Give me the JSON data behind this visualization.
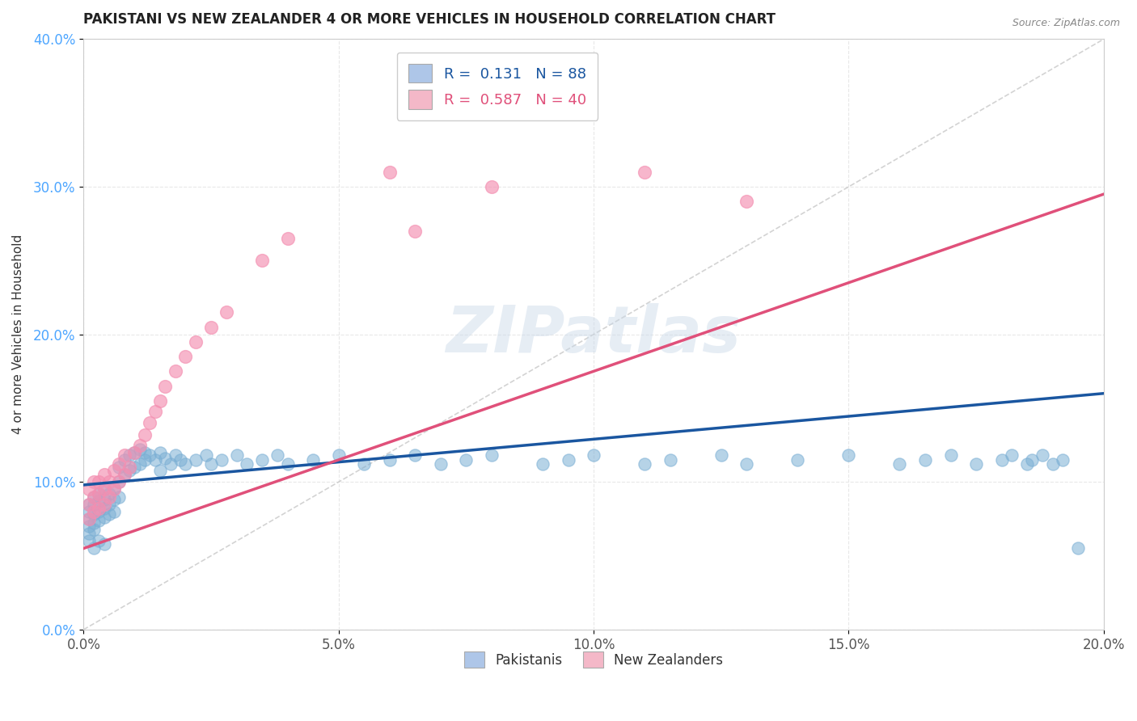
{
  "title": "PAKISTANI VS NEW ZEALANDER 4 OR MORE VEHICLES IN HOUSEHOLD CORRELATION CHART",
  "source": "Source: ZipAtlas.com",
  "ylabel": "4 or more Vehicles in Household",
  "xlim": [
    0.0,
    0.2
  ],
  "ylim": [
    0.0,
    0.4
  ],
  "xticks": [
    0.0,
    0.05,
    0.1,
    0.15,
    0.2
  ],
  "yticks": [
    0.0,
    0.1,
    0.2,
    0.3,
    0.4
  ],
  "xticklabels": [
    "0.0%",
    "5.0%",
    "10.0%",
    "15.0%",
    "20.0%"
  ],
  "yticklabels": [
    "0.0%",
    "10.0%",
    "20.0%",
    "30.0%",
    "40.0%"
  ],
  "legend_blue_label": "R =  0.131   N = 88",
  "legend_pink_label": "R =  0.587   N = 40",
  "legend_blue_color": "#aec6e8",
  "legend_pink_color": "#f4b8c8",
  "scatter_blue_color": "#7bafd4",
  "scatter_pink_color": "#f48fb1",
  "line_blue_color": "#1a56a0",
  "line_pink_color": "#e0507a",
  "ref_line_color": "#c8c8c8",
  "watermark": "ZIPatlas",
  "watermark_color_zip": "#c8d8e8",
  "watermark_color_atlas": "#a0bcd0",
  "pakistanis_x": [
    0.001,
    0.001,
    0.001,
    0.001,
    0.001,
    0.001,
    0.002,
    0.002,
    0.002,
    0.002,
    0.002,
    0.002,
    0.003,
    0.003,
    0.003,
    0.003,
    0.003,
    0.004,
    0.004,
    0.004,
    0.004,
    0.004,
    0.005,
    0.005,
    0.005,
    0.006,
    0.006,
    0.006,
    0.007,
    0.007,
    0.007,
    0.008,
    0.008,
    0.009,
    0.009,
    0.01,
    0.01,
    0.011,
    0.011,
    0.012,
    0.012,
    0.013,
    0.014,
    0.015,
    0.015,
    0.016,
    0.017,
    0.018,
    0.019,
    0.02,
    0.022,
    0.024,
    0.025,
    0.027,
    0.03,
    0.032,
    0.035,
    0.038,
    0.04,
    0.045,
    0.05,
    0.055,
    0.06,
    0.065,
    0.07,
    0.075,
    0.08,
    0.09,
    0.095,
    0.1,
    0.11,
    0.115,
    0.125,
    0.13,
    0.14,
    0.15,
    0.16,
    0.165,
    0.17,
    0.175,
    0.18,
    0.182,
    0.185,
    0.186,
    0.188,
    0.19,
    0.192,
    0.195
  ],
  "pakistanis_y": [
    0.08,
    0.085,
    0.075,
    0.07,
    0.065,
    0.06,
    0.09,
    0.085,
    0.078,
    0.072,
    0.068,
    0.055,
    0.092,
    0.087,
    0.08,
    0.074,
    0.06,
    0.095,
    0.088,
    0.082,
    0.076,
    0.058,
    0.092,
    0.085,
    0.078,
    0.096,
    0.088,
    0.08,
    0.11,
    0.1,
    0.09,
    0.115,
    0.105,
    0.118,
    0.108,
    0.12,
    0.11,
    0.122,
    0.112,
    0.12,
    0.115,
    0.118,
    0.115,
    0.12,
    0.108,
    0.116,
    0.112,
    0.118,
    0.115,
    0.112,
    0.115,
    0.118,
    0.112,
    0.115,
    0.118,
    0.112,
    0.115,
    0.118,
    0.112,
    0.115,
    0.118,
    0.112,
    0.115,
    0.118,
    0.112,
    0.115,
    0.118,
    0.112,
    0.115,
    0.118,
    0.112,
    0.115,
    0.118,
    0.112,
    0.115,
    0.118,
    0.112,
    0.115,
    0.118,
    0.112,
    0.115,
    0.118,
    0.112,
    0.115,
    0.118,
    0.112,
    0.115,
    0.055
  ],
  "nz_x": [
    0.001,
    0.001,
    0.001,
    0.002,
    0.002,
    0.002,
    0.003,
    0.003,
    0.003,
    0.004,
    0.004,
    0.004,
    0.005,
    0.005,
    0.006,
    0.006,
    0.007,
    0.007,
    0.008,
    0.008,
    0.009,
    0.01,
    0.011,
    0.012,
    0.013,
    0.014,
    0.015,
    0.016,
    0.018,
    0.02,
    0.022,
    0.025,
    0.028,
    0.035,
    0.04,
    0.06,
    0.065,
    0.08,
    0.11,
    0.13
  ],
  "nz_y": [
    0.075,
    0.085,
    0.095,
    0.08,
    0.09,
    0.1,
    0.082,
    0.092,
    0.1,
    0.085,
    0.095,
    0.105,
    0.09,
    0.1,
    0.095,
    0.108,
    0.1,
    0.112,
    0.105,
    0.118,
    0.11,
    0.12,
    0.125,
    0.132,
    0.14,
    0.148,
    0.155,
    0.165,
    0.175,
    0.185,
    0.195,
    0.205,
    0.215,
    0.25,
    0.265,
    0.31,
    0.27,
    0.3,
    0.31,
    0.29
  ],
  "blue_trend": [
    0.098,
    0.16
  ],
  "pink_trend": [
    0.055,
    0.295
  ],
  "ref_line_x": [
    0.0,
    0.2
  ],
  "ref_line_y": [
    0.0,
    0.4
  ],
  "figsize": [
    14.06,
    8.92
  ],
  "dpi": 100,
  "background_color": "#ffffff",
  "grid_color": "#e8e8e8",
  "ytick_color": "#4da6ff",
  "xtick_color": "#555555",
  "title_color": "#222222",
  "source_color": "#888888",
  "ylabel_color": "#333333"
}
